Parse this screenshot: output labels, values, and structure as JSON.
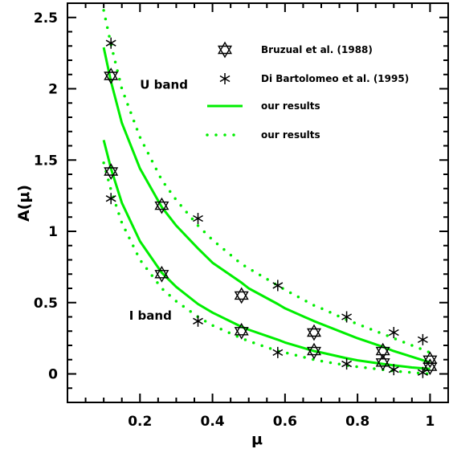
{
  "chart_data": {
    "type": "scatter",
    "title": "",
    "xlabel": "μ",
    "ylabel": "A(μ)",
    "xlim": [
      0.0,
      1.05
    ],
    "ylim": [
      -0.2,
      2.6
    ],
    "x_ticks": [
      0.2,
      0.4,
      0.6,
      0.8,
      1.0
    ],
    "x_tick_labels": [
      "0.2",
      "0.4",
      "0.6",
      "0.8",
      "1"
    ],
    "y_ticks": [
      0,
      0.5,
      1.0,
      1.5,
      2.0,
      2.5
    ],
    "y_tick_labels": [
      "0",
      "0.5",
      "1",
      "1.5",
      "2",
      "2.5"
    ],
    "grid": false,
    "legend_position": "top-right",
    "legend": [
      {
        "label": "Bruzual et al. (1988)",
        "marker": "star-of-david"
      },
      {
        "label": "Di Bartolomeo et al. (1995)",
        "marker": "asterisk"
      },
      {
        "label": "our results",
        "style": "solid",
        "color": "#00ee00"
      },
      {
        "label": "our results",
        "style": "dotted",
        "color": "#00ee00"
      }
    ],
    "annotations": [
      {
        "text": "U band",
        "x": 0.2,
        "y": 2.0
      },
      {
        "text": "I band",
        "x": 0.17,
        "y": 0.38
      }
    ],
    "series": [
      {
        "name": "Bruzual et al. (1988)",
        "marker": "star-of-david",
        "points": [
          [
            0.12,
            2.09
          ],
          [
            0.26,
            1.18
          ],
          [
            0.48,
            0.55
          ],
          [
            0.68,
            0.29
          ],
          [
            0.87,
            0.16
          ],
          [
            1.0,
            0.1
          ],
          [
            0.12,
            1.42
          ],
          [
            0.26,
            0.7
          ],
          [
            0.48,
            0.3
          ],
          [
            0.68,
            0.16
          ],
          [
            0.87,
            0.08
          ],
          [
            1.0,
            0.05
          ]
        ]
      },
      {
        "name": "Di Bartolomeo et al. (1995)",
        "marker": "asterisk",
        "points": [
          [
            0.12,
            2.32
          ],
          [
            0.36,
            1.09
          ],
          [
            0.58,
            0.62
          ],
          [
            0.77,
            0.4
          ],
          [
            0.9,
            0.29
          ],
          [
            0.98,
            0.24
          ],
          [
            0.12,
            1.23
          ],
          [
            0.36,
            0.37
          ],
          [
            0.58,
            0.15
          ],
          [
            0.77,
            0.07
          ],
          [
            0.9,
            0.03
          ],
          [
            0.98,
            0.01
          ]
        ]
      },
      {
        "name": "our results",
        "style": "solid",
        "color": "#00ee00",
        "curves": [
          {
            "x": [
              0.1,
              0.12,
              0.15,
              0.2,
              0.26,
              0.3,
              0.36,
              0.4,
              0.48,
              0.5,
              0.58,
              0.6,
              0.68,
              0.7,
              0.77,
              0.8,
              0.87,
              0.9,
              0.95,
              1.0
            ],
            "y": [
              2.29,
              2.05,
              1.76,
              1.44,
              1.17,
              1.04,
              0.88,
              0.78,
              0.64,
              0.6,
              0.49,
              0.46,
              0.37,
              0.35,
              0.28,
              0.25,
              0.19,
              0.16,
              0.12,
              0.08
            ]
          },
          {
            "x": [
              0.1,
              0.12,
              0.15,
              0.2,
              0.26,
              0.3,
              0.36,
              0.4,
              0.48,
              0.5,
              0.58,
              0.6,
              0.68,
              0.7,
              0.77,
              0.8,
              0.87,
              0.9,
              0.95,
              1.0
            ],
            "y": [
              1.64,
              1.44,
              1.2,
              0.93,
              0.71,
              0.61,
              0.49,
              0.43,
              0.33,
              0.31,
              0.24,
              0.22,
              0.16,
              0.15,
              0.11,
              0.095,
              0.07,
              0.06,
              0.045,
              0.035
            ]
          }
        ]
      },
      {
        "name": "our results",
        "style": "dotted",
        "color": "#00ee00",
        "curves": [
          {
            "x": [
              0.1,
              0.12,
              0.15,
              0.2,
              0.26,
              0.3,
              0.36,
              0.4,
              0.48,
              0.5,
              0.58,
              0.6,
              0.68,
              0.7,
              0.77,
              0.8,
              0.87,
              0.9,
              0.95,
              1.0
            ],
            "y": [
              2.55,
              2.31,
              2.0,
              1.66,
              1.36,
              1.22,
              1.04,
              0.94,
              0.77,
              0.74,
              0.62,
              0.59,
              0.48,
              0.46,
              0.38,
              0.35,
              0.28,
              0.25,
              0.2,
              0.15
            ]
          },
          {
            "x": [
              0.1,
              0.12,
              0.15,
              0.2,
              0.26,
              0.3,
              0.36,
              0.4,
              0.48,
              0.5,
              0.58,
              0.6,
              0.68,
              0.7,
              0.77,
              0.8,
              0.87,
              0.9,
              0.95,
              1.0
            ],
            "y": [
              1.48,
              1.29,
              1.06,
              0.8,
              0.6,
              0.51,
              0.4,
              0.34,
              0.25,
              0.23,
              0.16,
              0.15,
              0.1,
              0.09,
              0.06,
              0.05,
              0.03,
              0.02,
              0.01,
              0.0
            ]
          }
        ]
      }
    ]
  }
}
